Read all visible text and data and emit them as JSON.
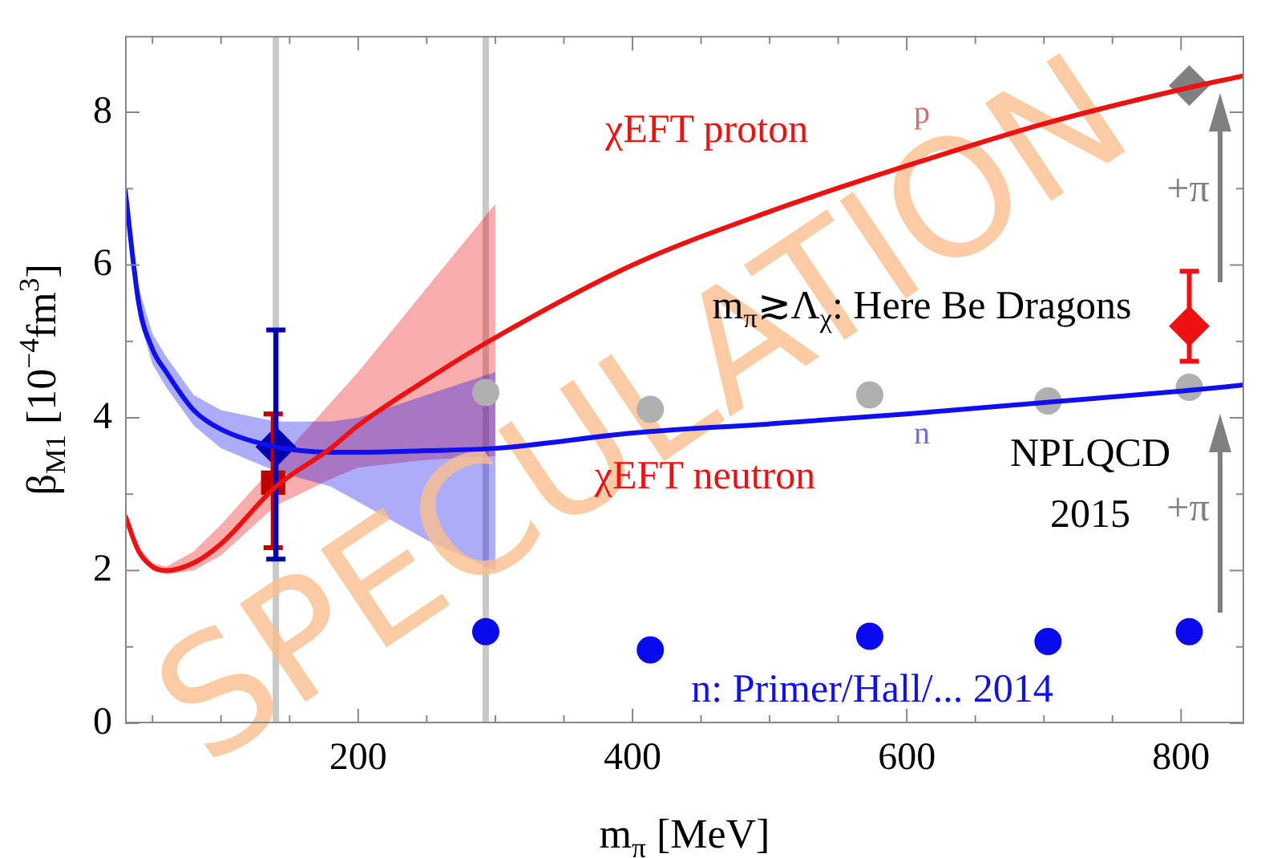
{
  "chart_data": {
    "type": "line",
    "xlabel": "m$_{π}$ [MeV]",
    "ylabel": "β$_{M1}$ [10$^{−4}$fm$^{3}$]",
    "xlim": [
      30,
      846
    ],
    "ylim": [
      0,
      9
    ],
    "xticks": [
      {
        "value": 50,
        "label": null
      },
      {
        "value": 100,
        "label": null
      },
      {
        "value": 150,
        "label": null
      },
      200,
      {
        "value": 250,
        "label": null
      },
      {
        "value": 300,
        "label": null
      },
      {
        "value": 350,
        "label": null
      },
      400,
      {
        "value": 450,
        "label": null
      },
      {
        "value": 500,
        "label": null
      },
      {
        "value": 550,
        "label": null
      },
      600,
      {
        "value": 650,
        "label": null
      },
      {
        "value": 700,
        "label": null
      },
      {
        "value": 750,
        "label": null
      },
      800
    ],
    "yticks": [
      0,
      {
        "value": 1,
        "label": null
      },
      2,
      {
        "value": 3,
        "label": null
      },
      4,
      {
        "value": 5,
        "label": null
      },
      6,
      {
        "value": 7,
        "label": null
      },
      8
    ],
    "grid": false,
    "legend": false,
    "series": [
      {
        "type": "line",
        "color": "#ee1111",
        "marker": "none",
        "x": [
          30,
          40,
          50,
          60,
          80,
          100,
          140,
          180,
          200,
          250,
          300,
          400,
          500,
          600,
          700,
          800,
          846
        ],
        "values": [
          2.72,
          2.25,
          2.05,
          2.0,
          2.1,
          2.35,
          3.1,
          3.6,
          3.9,
          4.5,
          5.05,
          6.0,
          6.7,
          7.3,
          7.85,
          8.3,
          8.48
        ],
        "lower": [
          2.65,
          2.2,
          2.0,
          1.95,
          2.0,
          2.2,
          2.85,
          3.2,
          3.35,
          3.45,
          3.5,
          null,
          null,
          null,
          null,
          null,
          null
        ],
        "upper": [
          2.8,
          2.3,
          2.1,
          2.05,
          2.25,
          2.6,
          3.4,
          4.2,
          4.6,
          5.7,
          6.8,
          null,
          null,
          null,
          null,
          null,
          null
        ]
      },
      {
        "type": "line",
        "color": "#1010ee",
        "marker": "none",
        "x": [
          30,
          40,
          50,
          60,
          80,
          100,
          140,
          180,
          200,
          250,
          300,
          400,
          500,
          600,
          700,
          800,
          846
        ],
        "values": [
          7.0,
          5.5,
          4.9,
          4.6,
          4.1,
          3.85,
          3.62,
          3.55,
          3.55,
          3.57,
          3.6,
          3.8,
          3.92,
          4.05,
          4.2,
          4.35,
          4.43
        ],
        "lower": [
          6.9,
          5.3,
          4.7,
          4.4,
          3.9,
          3.6,
          3.3,
          3.1,
          2.9,
          2.4,
          2.0,
          null,
          null,
          null,
          null,
          null,
          null
        ],
        "upper": [
          7.1,
          5.7,
          5.1,
          4.8,
          4.3,
          4.1,
          3.95,
          3.95,
          4.0,
          4.3,
          4.6,
          null,
          null,
          null,
          null,
          null,
          null
        ]
      },
      {
        "type": "scatter",
        "color": "#b0b0b0",
        "marker": "circle",
        "x": [
          293,
          413,
          573,
          703,
          806
        ],
        "values": [
          4.33,
          4.11,
          4.3,
          4.22,
          4.4
        ]
      },
      {
        "type": "scatter",
        "color": "#0a0aee",
        "marker": "circle",
        "x": [
          293,
          413,
          573,
          703,
          806
        ],
        "values": [
          1.2,
          0.96,
          1.14,
          1.07,
          1.2
        ]
      },
      {
        "type": "scatter",
        "color": "#c00000",
        "marker": "square",
        "x": [
          138
        ],
        "values": [
          3.15
        ],
        "errors": [
          [
            2.3,
            4.05
          ]
        ]
      },
      {
        "type": "scatter",
        "color": "#0000b0",
        "marker": "diamond",
        "x": [
          140
        ],
        "values": [
          3.62
        ],
        "errors": [
          [
            2.15,
            5.15
          ]
        ]
      },
      {
        "type": "scatter",
        "color": "#ee1111",
        "marker": "diamond",
        "x": [
          806
        ],
        "values": [
          5.2
        ],
        "errors": [
          [
            4.74,
            5.92
          ]
        ]
      },
      {
        "type": "scatter",
        "color": "#808080",
        "marker": "diamond",
        "x": [
          806
        ],
        "values": [
          8.35
        ]
      }
    ],
    "ref_lines": [
      {
        "axis": "x",
        "value": 140,
        "color": "#c8c8c8"
      },
      {
        "axis": "x",
        "value": 293,
        "color": "#c8c8c8"
      }
    ],
    "annotations": [
      "χEFT proton",
      "χEFT neutron",
      "m$_{π}$≳Λ$_{χ}$: Here Be Dragons",
      "NPLQCD",
      "2015",
      "n: Primer/Hall/... 2014",
      "+π",
      "+π",
      "p",
      "n",
      "SPECULATION"
    ]
  }
}
